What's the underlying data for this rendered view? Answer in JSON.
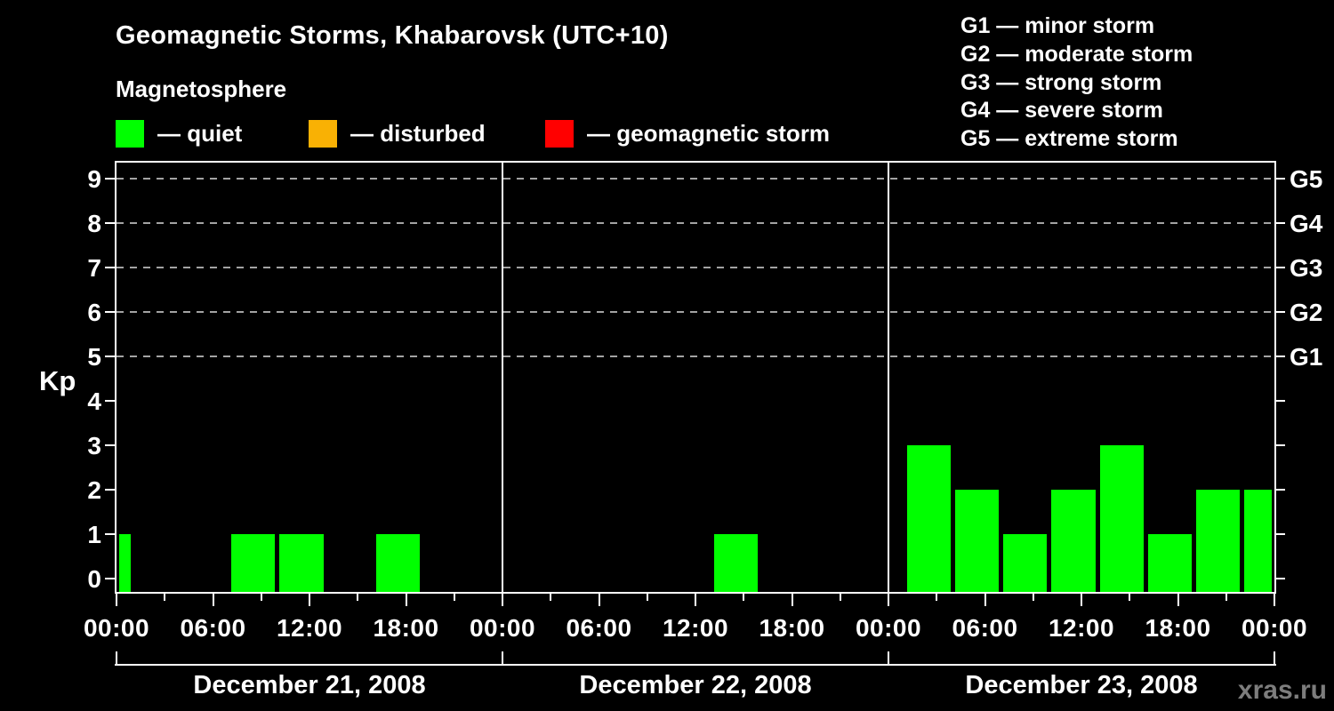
{
  "title": "Geomagnetic Storms, Khabarovsk (UTC+10)",
  "subtitle": "Magnetosphere",
  "watermark": "xras.ru",
  "legend": {
    "items": [
      {
        "label": "— quiet",
        "color": "#00ff00"
      },
      {
        "label": "— disturbed",
        "color": "#f9b104"
      },
      {
        "label": "— geomagnetic storm",
        "color": "#ff0000"
      }
    ]
  },
  "g_scale_legend": {
    "lines": [
      "G1 — minor storm",
      "G2 — moderate storm",
      "G3 — strong storm",
      "G4 — severe storm",
      "G5 — extreme storm"
    ]
  },
  "chart_data": {
    "type": "bar",
    "title": "Geomagnetic Storms, Khabarovsk (UTC+10)",
    "subtitle": "Magnetosphere",
    "xlabel": "",
    "ylabel": "Kp",
    "ylim": [
      0,
      9
    ],
    "y_ticks": [
      0,
      1,
      2,
      3,
      4,
      5,
      6,
      7,
      8,
      9
    ],
    "gridline_levels": [
      5,
      6,
      7,
      8,
      9
    ],
    "grid": "dashed horizontal lines at storm levels only",
    "right_axis_labels": [
      {
        "kp": 5,
        "label": "G1"
      },
      {
        "kp": 6,
        "label": "G2"
      },
      {
        "kp": 7,
        "label": "G3"
      },
      {
        "kp": 8,
        "label": "G4"
      },
      {
        "kp": 9,
        "label": "G5"
      }
    ],
    "bar_color_rule": [
      {
        "kp_max": 3,
        "color": "#00ff00",
        "meaning": "quiet"
      },
      {
        "kp_max": 4,
        "color": "#f9b104",
        "meaning": "disturbed"
      },
      {
        "kp_max": 9,
        "color": "#ff0000",
        "meaning": "geomagnetic storm"
      }
    ],
    "x_minor_tick_step_hours": 3,
    "x_label_hours": [
      0,
      6,
      12,
      18
    ],
    "x_labels": [
      "00:00",
      "06:00",
      "12:00",
      "18:00"
    ],
    "end_x_label": "00:00",
    "days": [
      {
        "date": "December 21, 2008",
        "bins": [
          {
            "start_hour": 0,
            "end_hour": 1,
            "kp": 1
          },
          {
            "start_hour": 1,
            "end_hour": 4,
            "kp": 0
          },
          {
            "start_hour": 4,
            "end_hour": 7,
            "kp": 0
          },
          {
            "start_hour": 7,
            "end_hour": 10,
            "kp": 1
          },
          {
            "start_hour": 10,
            "end_hour": 13,
            "kp": 1
          },
          {
            "start_hour": 13,
            "end_hour": 16,
            "kp": 0
          },
          {
            "start_hour": 16,
            "end_hour": 19,
            "kp": 1
          },
          {
            "start_hour": 19,
            "end_hour": 22,
            "kp": 0
          },
          {
            "start_hour": 22,
            "end_hour": 24,
            "kp": 0
          }
        ]
      },
      {
        "date": "December 22, 2008",
        "bins": [
          {
            "start_hour": 0,
            "end_hour": 1,
            "kp": 0
          },
          {
            "start_hour": 1,
            "end_hour": 4,
            "kp": 0
          },
          {
            "start_hour": 4,
            "end_hour": 7,
            "kp": 0
          },
          {
            "start_hour": 7,
            "end_hour": 10,
            "kp": 0
          },
          {
            "start_hour": 10,
            "end_hour": 13,
            "kp": 0
          },
          {
            "start_hour": 13,
            "end_hour": 16,
            "kp": 1
          },
          {
            "start_hour": 16,
            "end_hour": 19,
            "kp": 0
          },
          {
            "start_hour": 19,
            "end_hour": 22,
            "kp": 0
          },
          {
            "start_hour": 22,
            "end_hour": 24,
            "kp": 0
          }
        ]
      },
      {
        "date": "December 23, 2008",
        "bins": [
          {
            "start_hour": 0,
            "end_hour": 1,
            "kp": 0
          },
          {
            "start_hour": 1,
            "end_hour": 4,
            "kp": 3
          },
          {
            "start_hour": 4,
            "end_hour": 7,
            "kp": 2
          },
          {
            "start_hour": 7,
            "end_hour": 10,
            "kp": 1
          },
          {
            "start_hour": 10,
            "end_hour": 13,
            "kp": 2
          },
          {
            "start_hour": 13,
            "end_hour": 16,
            "kp": 3
          },
          {
            "start_hour": 16,
            "end_hour": 19,
            "kp": 1
          },
          {
            "start_hour": 19,
            "end_hour": 22,
            "kp": 2
          },
          {
            "start_hour": 22,
            "end_hour": 24,
            "kp": 2
          }
        ]
      }
    ]
  }
}
